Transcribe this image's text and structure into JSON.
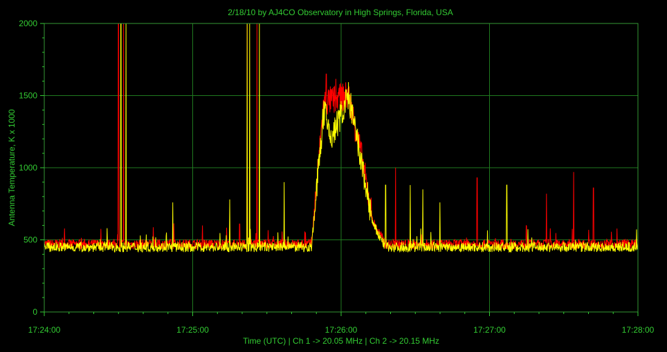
{
  "chart_data": {
    "type": "line",
    "title": "2/18/10  by  AJ4CO Observatory  in  High Springs, Florida, USA",
    "xlabel": "Time (UTC)  |  Ch 1 -> 20.05 MHz  |  Ch 2 -> 20.15 MHz",
    "ylabel": "Antenna Temperature, K x 1000",
    "xlim": [
      "17:24:00",
      "17:28:00"
    ],
    "ylim": [
      0,
      2000
    ],
    "x_ticks": [
      "17:24:00",
      "17:25:00",
      "17:26:00",
      "17:27:00",
      "17:28:00"
    ],
    "y_ticks": [
      "0",
      "500",
      "1000",
      "1500",
      "2000"
    ],
    "grid": true,
    "series": [
      {
        "name": "Ch 1 -> 20.05 MHz",
        "color": "#ff0000",
        "baseline": 470,
        "noise": 35,
        "envelope": [
          {
            "t": "17:25:48",
            "v": 470
          },
          {
            "t": "17:25:53",
            "v": 1450
          },
          {
            "t": "17:26:03",
            "v": 1500
          },
          {
            "t": "17:26:08",
            "v": 1100
          },
          {
            "t": "17:26:13",
            "v": 620
          },
          {
            "t": "17:26:18",
            "v": 470
          }
        ],
        "spikes": [
          {
            "t": "17:24:30",
            "v": 2000
          },
          {
            "t": "17:24:32",
            "v": 2000
          },
          {
            "t": "17:25:04",
            "v": 600
          },
          {
            "t": "17:25:19",
            "v": 610
          },
          {
            "t": "17:25:22",
            "v": 2000
          },
          {
            "t": "17:25:26",
            "v": 2000
          },
          {
            "t": "17:25:54",
            "v": 1650
          },
          {
            "t": "17:26:22",
            "v": 1000
          },
          {
            "t": "17:26:55",
            "v": 930
          },
          {
            "t": "17:27:23",
            "v": 820
          },
          {
            "t": "17:27:34",
            "v": 970
          },
          {
            "t": "17:27:42",
            "v": 860
          }
        ]
      },
      {
        "name": "Ch 2 -> 20.15 MHz",
        "color": "#ffff00",
        "baseline": 450,
        "noise": 35,
        "envelope": [
          {
            "t": "17:25:48",
            "v": 450
          },
          {
            "t": "17:25:53",
            "v": 1400
          },
          {
            "t": "17:25:56",
            "v": 1200
          },
          {
            "t": "17:26:03",
            "v": 1500
          },
          {
            "t": "17:26:08",
            "v": 1050
          },
          {
            "t": "17:26:13",
            "v": 600
          },
          {
            "t": "17:26:18",
            "v": 450
          }
        ],
        "spikes": [
          {
            "t": "17:24:31",
            "v": 2000
          },
          {
            "t": "17:24:33",
            "v": 2000
          },
          {
            "t": "17:24:52",
            "v": 760
          },
          {
            "t": "17:25:15",
            "v": 780
          },
          {
            "t": "17:25:22",
            "v": 2000
          },
          {
            "t": "17:25:23",
            "v": 2000
          },
          {
            "t": "17:25:27",
            "v": 2000
          },
          {
            "t": "17:25:37",
            "v": 900
          },
          {
            "t": "17:26:18",
            "v": 880
          },
          {
            "t": "17:26:28",
            "v": 880
          },
          {
            "t": "17:26:33",
            "v": 850
          },
          {
            "t": "17:26:40",
            "v": 760
          },
          {
            "t": "17:27:07",
            "v": 880
          }
        ]
      }
    ]
  }
}
